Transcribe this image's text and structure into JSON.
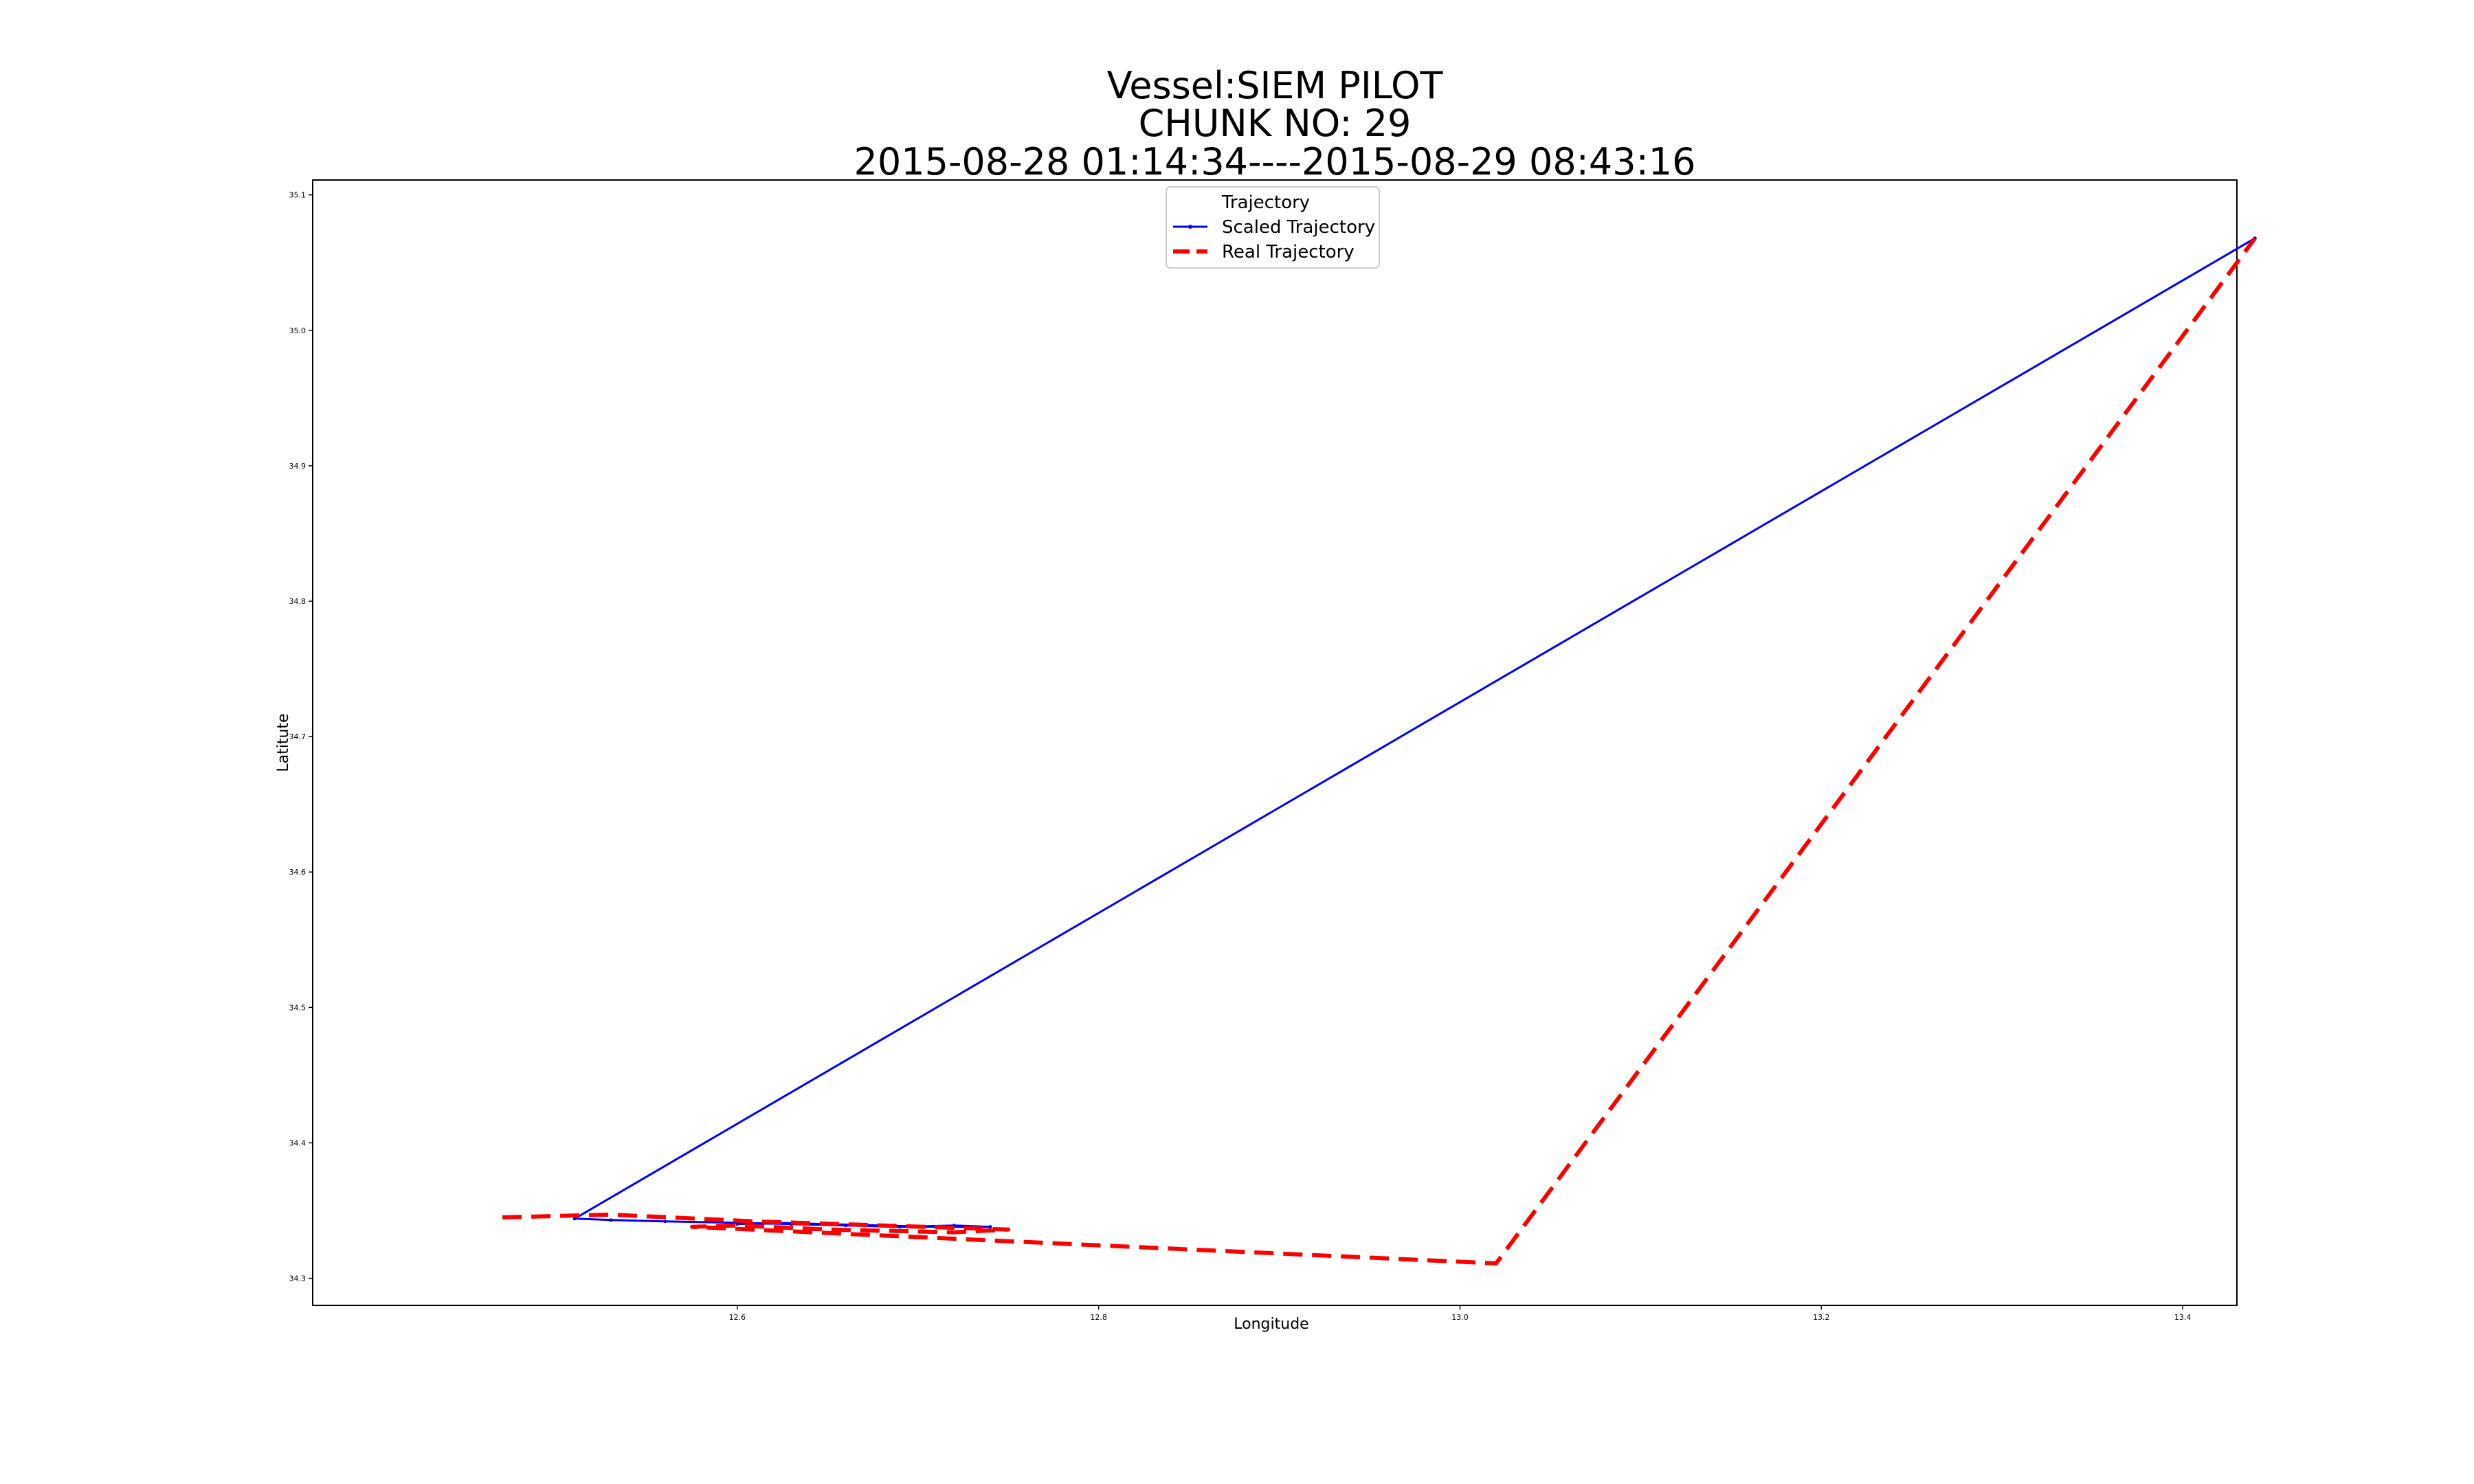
{
  "chart_data": {
    "type": "line",
    "title": [
      "Vessel:SIEM PILOT",
      "CHUNK NO: 29",
      "2015-08-28 01:14:34----2015-08-29 08:43:16"
    ],
    "xlabel": "Longitude",
    "ylabel": "Latitute",
    "xlim": [
      12.365,
      13.43
    ],
    "ylim": [
      34.28,
      35.111
    ],
    "x_ticks": [
      12.6,
      12.8,
      13.0,
      13.2,
      13.4
    ],
    "x_tick_labels": [
      "12.6",
      "12.8",
      "13.0",
      "13.2",
      "13.4"
    ],
    "y_ticks": [
      34.3,
      34.4,
      34.5,
      34.6,
      34.7,
      34.8,
      34.9,
      35.0,
      35.1
    ],
    "y_tick_labels": [
      "34.3",
      "34.4",
      "34.5",
      "34.6",
      "34.7",
      "34.8",
      "34.9",
      "35.0",
      "35.1"
    ],
    "grid": false,
    "legend": {
      "title": "Trajectory",
      "placement": "upper center"
    },
    "series": [
      {
        "name": "Scaled Trajectory",
        "color": "#0000ff",
        "style": "solid-with-markers",
        "x": [
          12.6,
          12.62,
          12.65,
          12.68,
          12.71,
          12.74,
          12.72,
          12.69,
          12.66,
          12.63,
          12.6,
          12.56,
          12.53,
          12.51,
          13.44
        ],
        "y": [
          34.34,
          34.341,
          34.34,
          34.339,
          34.338,
          34.338,
          34.339,
          34.338,
          34.339,
          34.34,
          34.341,
          34.342,
          34.343,
          34.344,
          35.068
        ]
      },
      {
        "name": "Real Trajectory",
        "color": "#ff0000",
        "style": "dashed",
        "x": [
          12.47,
          12.53,
          12.61,
          12.68,
          12.75,
          12.72,
          12.65,
          12.6,
          12.575,
          13.02,
          13.44
        ],
        "y": [
          34.345,
          34.347,
          34.342,
          34.339,
          34.336,
          34.334,
          34.336,
          34.339,
          34.338,
          34.311,
          35.068
        ]
      }
    ]
  }
}
